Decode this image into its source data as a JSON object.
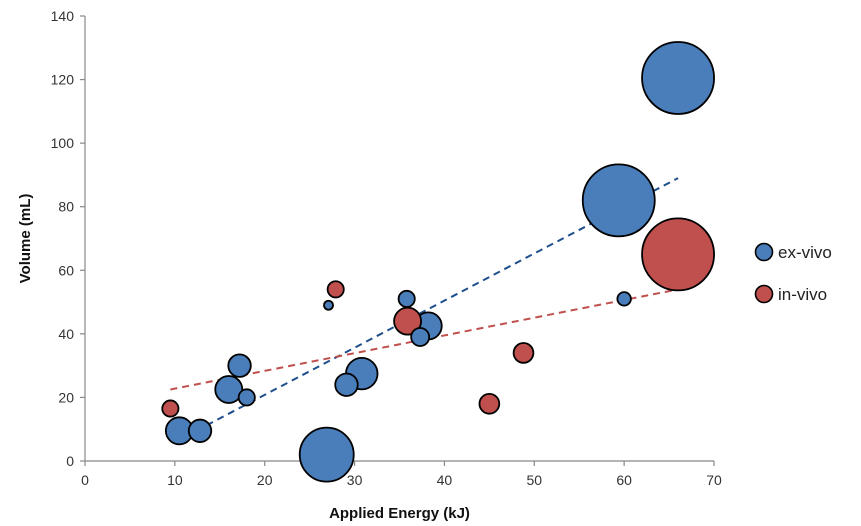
{
  "chart_data": {
    "type": "bubble",
    "title": "",
    "xlabel": "Applied Energy (kJ)",
    "ylabel": "Volume (mL)",
    "xlim": [
      0,
      70
    ],
    "ylim": [
      0,
      140
    ],
    "xticks": [
      0,
      10,
      20,
      30,
      40,
      50,
      60,
      70
    ],
    "yticks": [
      0,
      20,
      40,
      60,
      80,
      100,
      120,
      140
    ],
    "grid": false,
    "legend_position": "right",
    "series": [
      {
        "name": "ex-vivo",
        "color": "#4a7ebb",
        "points": [
          {
            "x": 10.5,
            "y": 9.5,
            "size": 3
          },
          {
            "x": 12.8,
            "y": 9.5,
            "size": 2.5
          },
          {
            "x": 16,
            "y": 22.5,
            "size": 3
          },
          {
            "x": 17.2,
            "y": 30,
            "size": 2.5
          },
          {
            "x": 18,
            "y": 20,
            "size": 1.8
          },
          {
            "x": 26.9,
            "y": 2,
            "size": 6
          },
          {
            "x": 27.1,
            "y": 49,
            "size": 1
          },
          {
            "x": 29.1,
            "y": 24,
            "size": 2.5
          },
          {
            "x": 30.8,
            "y": 27.5,
            "size": 3.5
          },
          {
            "x": 35.8,
            "y": 51,
            "size": 1.8
          },
          {
            "x": 37.3,
            "y": 39,
            "size": 2
          },
          {
            "x": 38.2,
            "y": 42.5,
            "size": 3
          },
          {
            "x": 59.4,
            "y": 82,
            "size": 8
          },
          {
            "x": 60,
            "y": 51,
            "size": 1.5
          },
          {
            "x": 66,
            "y": 120.5,
            "size": 8
          }
        ],
        "trendline": {
          "x": [
            10,
            66
          ],
          "y": [
            6,
            89
          ]
        }
      },
      {
        "name": "in-vivo",
        "color": "#c0504d",
        "points": [
          {
            "x": 9.5,
            "y": 16.5,
            "size": 1.8
          },
          {
            "x": 27.9,
            "y": 54,
            "size": 1.8
          },
          {
            "x": 35.9,
            "y": 44,
            "size": 3
          },
          {
            "x": 45,
            "y": 18,
            "size": 2.2
          },
          {
            "x": 48.8,
            "y": 34,
            "size": 2.2
          },
          {
            "x": 66,
            "y": 65,
            "size": 8
          }
        ],
        "trendline": {
          "x": [
            9.5,
            66
          ],
          "y": [
            22.5,
            54
          ]
        }
      }
    ]
  }
}
